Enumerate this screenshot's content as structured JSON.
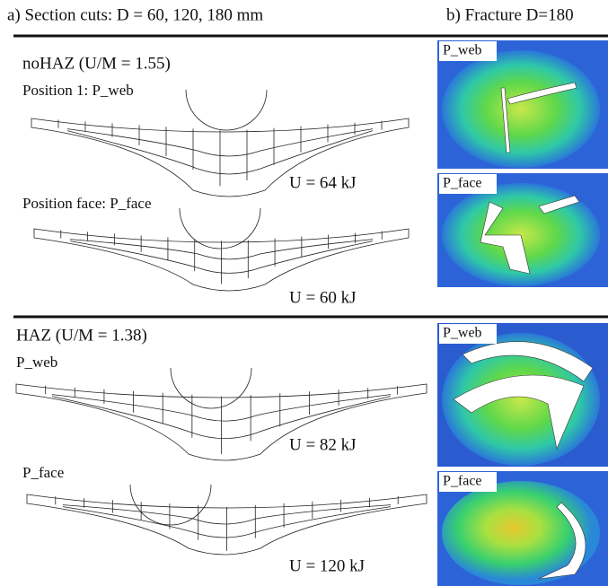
{
  "header": {
    "left": "a) Section cuts: D = 60, 120, 180 mm",
    "right": "b) Fracture D=180"
  },
  "sections": [
    {
      "title": "noHAZ (U/M = 1.55)",
      "cases": [
        {
          "label": "Position 1: P_web",
          "energy": "U = 64 kJ",
          "fracture_label": "P_web"
        },
        {
          "label": "Position face: P_face",
          "energy": "U = 60 kJ",
          "fracture_label": "P_face"
        }
      ]
    },
    {
      "title": "HAZ (U/M = 1.38)",
      "cases": [
        {
          "label": "P_web",
          "energy": "U = 82 kJ",
          "fracture_label": "P_web"
        },
        {
          "label": "P_face",
          "energy": "U = 120 kJ",
          "fracture_label": "P_face"
        }
      ]
    }
  ]
}
